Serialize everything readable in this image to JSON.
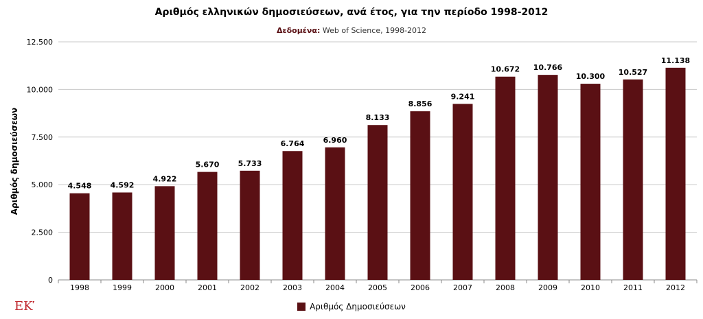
{
  "chart_data": {
    "type": "bar",
    "title": "Αριθμός ελληνικών δημοσιεύσεων, ανά έτος, για την περίοδο 1998-2012",
    "subtitle_label": "Δεδομένα:",
    "subtitle_value": "Web of Science, 1998-2012",
    "xlabel": "",
    "ylabel": "Αριθμός δημοσιεύσεων",
    "categories": [
      "1998",
      "1999",
      "2000",
      "2001",
      "2002",
      "2003",
      "2004",
      "2005",
      "2006",
      "2007",
      "2008",
      "2009",
      "2010",
      "2011",
      "2012"
    ],
    "series": [
      {
        "name": "Αριθμός Δημοσιεύσεων",
        "values": [
          4548,
          4592,
          4922,
          5670,
          5733,
          6764,
          6960,
          8133,
          8856,
          9241,
          10672,
          10766,
          10300,
          10527,
          11138
        ],
        "labels": [
          "4.548",
          "4.592",
          "4.922",
          "5.670",
          "5.733",
          "6.764",
          "6.960",
          "8.133",
          "8.856",
          "9.241",
          "10.672",
          "10.766",
          "10.300",
          "10.527",
          "11.138"
        ]
      }
    ],
    "ylim": [
      0,
      12500
    ],
    "yticks": [
      0,
      2500,
      5000,
      7500,
      10000,
      12500
    ],
    "ytick_labels": [
      "0",
      "2.500",
      "5.000",
      "7.500",
      "10.000",
      "12.500"
    ],
    "grid": true,
    "legend_position": "bottom",
    "bar_color": "#5a1014"
  },
  "logo_text": "EKT"
}
